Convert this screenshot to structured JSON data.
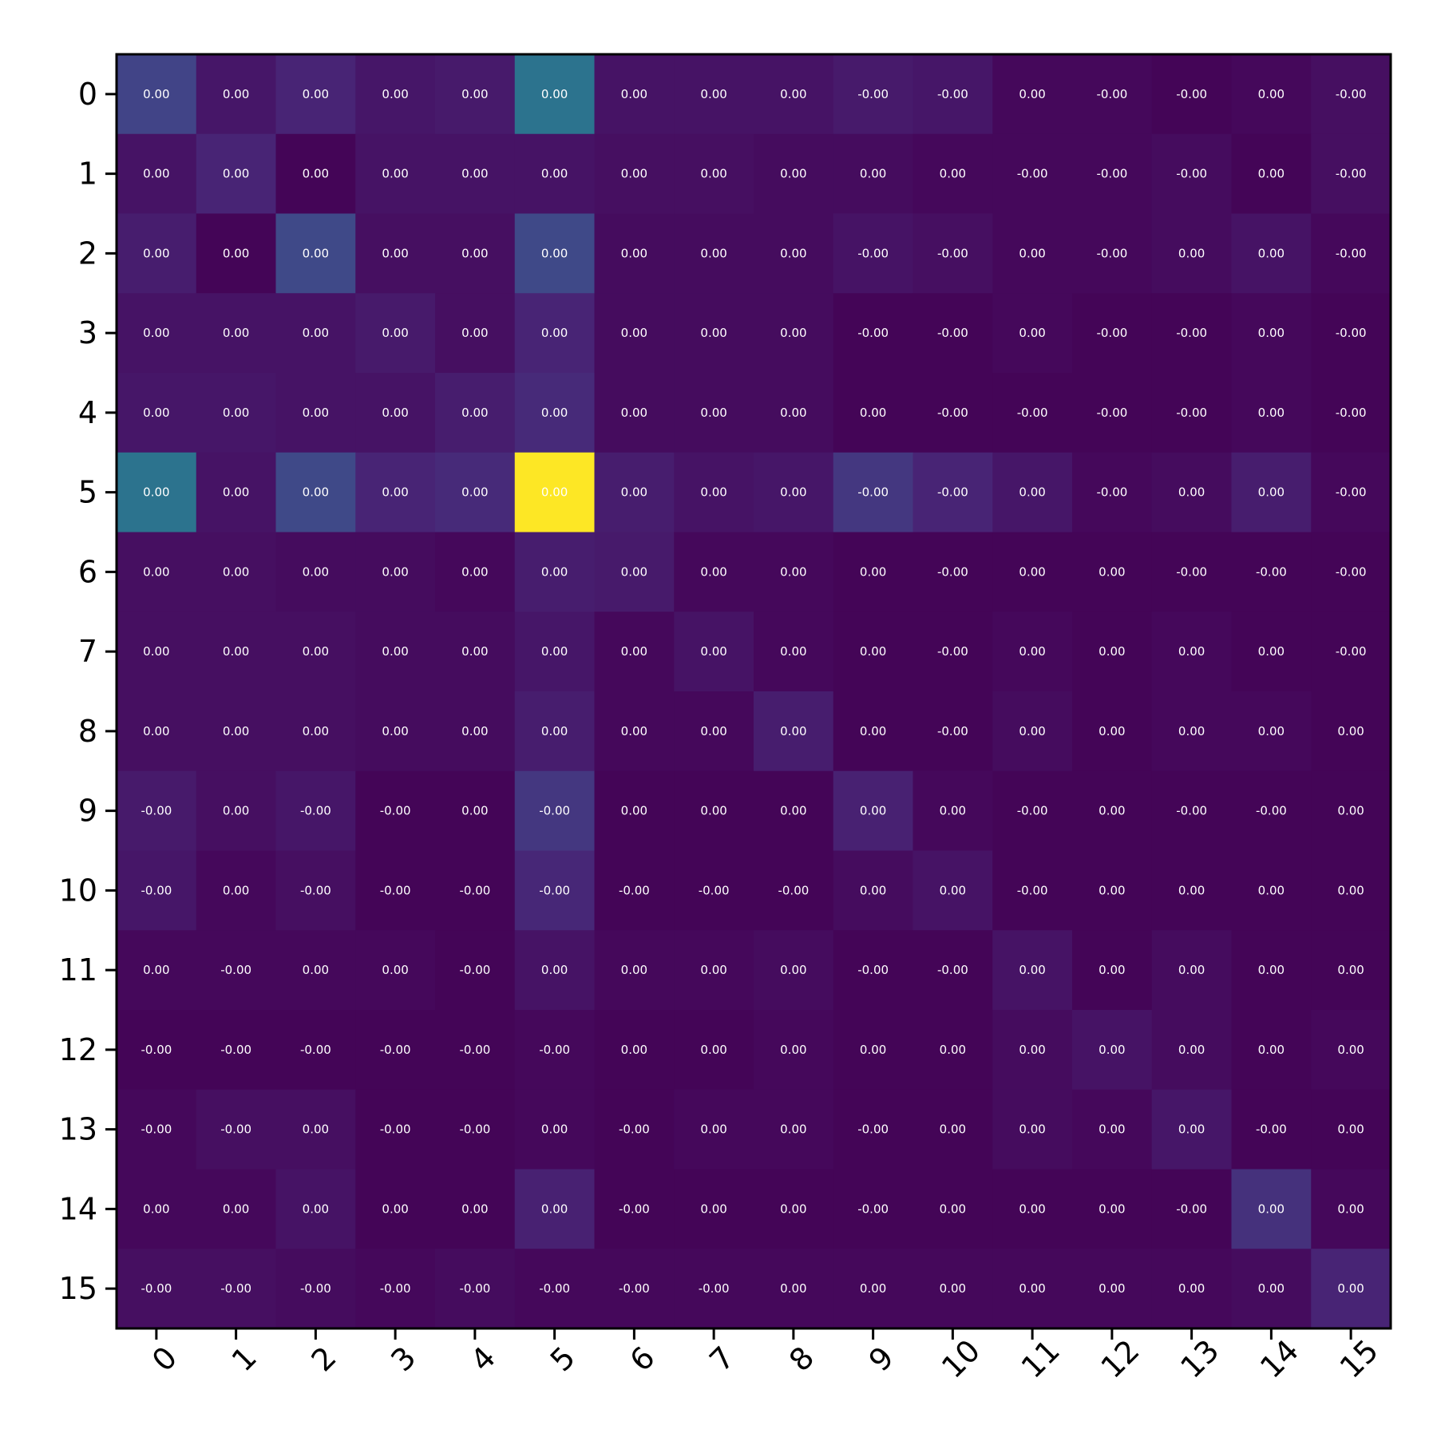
{
  "chart_data": {
    "type": "heatmap",
    "colormap": "viridis",
    "x_categories": [
      "0",
      "1",
      "2",
      "3",
      "4",
      "5",
      "6",
      "7",
      "8",
      "9",
      "10",
      "11",
      "12",
      "13",
      "14",
      "15"
    ],
    "y_categories": [
      "0",
      "1",
      "2",
      "3",
      "4",
      "5",
      "6",
      "7",
      "8",
      "9",
      "10",
      "11",
      "12",
      "13",
      "14",
      "15"
    ],
    "x_tick_rotation_deg": 45,
    "value_range": [
      0,
      1
    ],
    "intensity": [
      [
        0.2,
        0.06,
        0.1,
        0.06,
        0.07,
        0.38,
        0.05,
        0.05,
        0.05,
        0.07,
        0.06,
        0.02,
        0.02,
        0.01,
        0.02,
        0.04
      ],
      [
        0.05,
        0.1,
        0.01,
        0.05,
        0.05,
        0.05,
        0.04,
        0.04,
        0.03,
        0.03,
        0.02,
        0.02,
        0.02,
        0.03,
        0.01,
        0.04
      ],
      [
        0.08,
        0.01,
        0.22,
        0.04,
        0.04,
        0.22,
        0.03,
        0.03,
        0.03,
        0.05,
        0.04,
        0.02,
        0.02,
        0.03,
        0.05,
        0.02
      ],
      [
        0.05,
        0.05,
        0.05,
        0.07,
        0.04,
        0.1,
        0.03,
        0.03,
        0.03,
        0.01,
        0.01,
        0.02,
        0.01,
        0.01,
        0.02,
        0.01
      ],
      [
        0.06,
        0.06,
        0.05,
        0.05,
        0.08,
        0.12,
        0.03,
        0.03,
        0.03,
        0.01,
        0.01,
        0.01,
        0.01,
        0.01,
        0.02,
        0.01
      ],
      [
        0.38,
        0.05,
        0.22,
        0.1,
        0.12,
        1.0,
        0.08,
        0.05,
        0.06,
        0.16,
        0.1,
        0.06,
        0.02,
        0.03,
        0.08,
        0.02
      ],
      [
        0.04,
        0.04,
        0.03,
        0.03,
        0.02,
        0.08,
        0.07,
        0.02,
        0.02,
        0.01,
        0.01,
        0.01,
        0.01,
        0.01,
        0.01,
        0.01
      ],
      [
        0.04,
        0.04,
        0.04,
        0.03,
        0.03,
        0.06,
        0.02,
        0.05,
        0.02,
        0.01,
        0.01,
        0.02,
        0.01,
        0.02,
        0.01,
        0.01
      ],
      [
        0.04,
        0.04,
        0.04,
        0.03,
        0.03,
        0.08,
        0.02,
        0.02,
        0.08,
        0.01,
        0.01,
        0.03,
        0.01,
        0.02,
        0.02,
        0.01
      ],
      [
        0.07,
        0.04,
        0.06,
        0.01,
        0.01,
        0.16,
        0.01,
        0.01,
        0.01,
        0.09,
        0.02,
        0.01,
        0.01,
        0.01,
        0.01,
        0.01
      ],
      [
        0.06,
        0.02,
        0.04,
        0.01,
        0.01,
        0.11,
        0.01,
        0.01,
        0.01,
        0.03,
        0.05,
        0.01,
        0.01,
        0.01,
        0.01,
        0.01
      ],
      [
        0.02,
        0.02,
        0.02,
        0.02,
        0.01,
        0.05,
        0.02,
        0.02,
        0.03,
        0.01,
        0.01,
        0.05,
        0.01,
        0.03,
        0.01,
        0.01
      ],
      [
        0.01,
        0.01,
        0.01,
        0.01,
        0.01,
        0.02,
        0.01,
        0.01,
        0.02,
        0.01,
        0.01,
        0.03,
        0.05,
        0.03,
        0.01,
        0.02
      ],
      [
        0.02,
        0.04,
        0.04,
        0.01,
        0.01,
        0.02,
        0.01,
        0.02,
        0.02,
        0.01,
        0.01,
        0.03,
        0.02,
        0.06,
        0.01,
        0.01
      ],
      [
        0.02,
        0.02,
        0.05,
        0.01,
        0.01,
        0.09,
        0.01,
        0.01,
        0.01,
        0.01,
        0.01,
        0.01,
        0.01,
        0.01,
        0.14,
        0.02
      ],
      [
        0.04,
        0.04,
        0.03,
        0.02,
        0.03,
        0.02,
        0.02,
        0.02,
        0.02,
        0.02,
        0.02,
        0.02,
        0.02,
        0.02,
        0.03,
        0.1
      ]
    ],
    "cell_labels": [
      [
        "0.00",
        "0.00",
        "0.00",
        "0.00",
        "0.00",
        "0.00",
        "0.00",
        "0.00",
        "0.00",
        "-0.00",
        "-0.00",
        "0.00",
        "-0.00",
        "-0.00",
        "0.00",
        "-0.00"
      ],
      [
        "0.00",
        "0.00",
        "0.00",
        "0.00",
        "0.00",
        "0.00",
        "0.00",
        "0.00",
        "0.00",
        "0.00",
        "0.00",
        "-0.00",
        "-0.00",
        "-0.00",
        "0.00",
        "-0.00"
      ],
      [
        "0.00",
        "0.00",
        "0.00",
        "0.00",
        "0.00",
        "0.00",
        "0.00",
        "0.00",
        "0.00",
        "-0.00",
        "-0.00",
        "0.00",
        "-0.00",
        "0.00",
        "0.00",
        "-0.00"
      ],
      [
        "0.00",
        "0.00",
        "0.00",
        "0.00",
        "0.00",
        "0.00",
        "0.00",
        "0.00",
        "0.00",
        "-0.00",
        "-0.00",
        "0.00",
        "-0.00",
        "-0.00",
        "0.00",
        "-0.00"
      ],
      [
        "0.00",
        "0.00",
        "0.00",
        "0.00",
        "0.00",
        "0.00",
        "0.00",
        "0.00",
        "0.00",
        "0.00",
        "-0.00",
        "-0.00",
        "-0.00",
        "-0.00",
        "0.00",
        "-0.00"
      ],
      [
        "0.00",
        "0.00",
        "0.00",
        "0.00",
        "0.00",
        "0.00",
        "0.00",
        "0.00",
        "0.00",
        "-0.00",
        "-0.00",
        "0.00",
        "-0.00",
        "0.00",
        "0.00",
        "-0.00"
      ],
      [
        "0.00",
        "0.00",
        "0.00",
        "0.00",
        "0.00",
        "0.00",
        "0.00",
        "0.00",
        "0.00",
        "0.00",
        "-0.00",
        "0.00",
        "0.00",
        "-0.00",
        "-0.00",
        "-0.00"
      ],
      [
        "0.00",
        "0.00",
        "0.00",
        "0.00",
        "0.00",
        "0.00",
        "0.00",
        "0.00",
        "0.00",
        "0.00",
        "-0.00",
        "0.00",
        "0.00",
        "0.00",
        "0.00",
        "-0.00"
      ],
      [
        "0.00",
        "0.00",
        "0.00",
        "0.00",
        "0.00",
        "0.00",
        "0.00",
        "0.00",
        "0.00",
        "0.00",
        "-0.00",
        "0.00",
        "0.00",
        "0.00",
        "0.00",
        "0.00"
      ],
      [
        "-0.00",
        "0.00",
        "-0.00",
        "-0.00",
        "0.00",
        "-0.00",
        "0.00",
        "0.00",
        "0.00",
        "0.00",
        "0.00",
        "-0.00",
        "0.00",
        "-0.00",
        "-0.00",
        "0.00"
      ],
      [
        "-0.00",
        "0.00",
        "-0.00",
        "-0.00",
        "-0.00",
        "-0.00",
        "-0.00",
        "-0.00",
        "-0.00",
        "0.00",
        "0.00",
        "-0.00",
        "0.00",
        "0.00",
        "0.00",
        "0.00"
      ],
      [
        "0.00",
        "-0.00",
        "0.00",
        "0.00",
        "-0.00",
        "0.00",
        "0.00",
        "0.00",
        "0.00",
        "-0.00",
        "-0.00",
        "0.00",
        "0.00",
        "0.00",
        "0.00",
        "0.00"
      ],
      [
        "-0.00",
        "-0.00",
        "-0.00",
        "-0.00",
        "-0.00",
        "-0.00",
        "0.00",
        "0.00",
        "0.00",
        "0.00",
        "0.00",
        "0.00",
        "0.00",
        "0.00",
        "0.00",
        "0.00"
      ],
      [
        "-0.00",
        "-0.00",
        "0.00",
        "-0.00",
        "-0.00",
        "0.00",
        "-0.00",
        "0.00",
        "0.00",
        "-0.00",
        "0.00",
        "0.00",
        "0.00",
        "0.00",
        "-0.00",
        "0.00"
      ],
      [
        "0.00",
        "0.00",
        "0.00",
        "0.00",
        "0.00",
        "0.00",
        "-0.00",
        "0.00",
        "0.00",
        "-0.00",
        "0.00",
        "0.00",
        "0.00",
        "-0.00",
        "0.00",
        "0.00"
      ],
      [
        "-0.00",
        "-0.00",
        "-0.00",
        "-0.00",
        "-0.00",
        "-0.00",
        "-0.00",
        "-0.00",
        "0.00",
        "0.00",
        "0.00",
        "0.00",
        "0.00",
        "0.00",
        "0.00",
        "0.00"
      ]
    ]
  }
}
